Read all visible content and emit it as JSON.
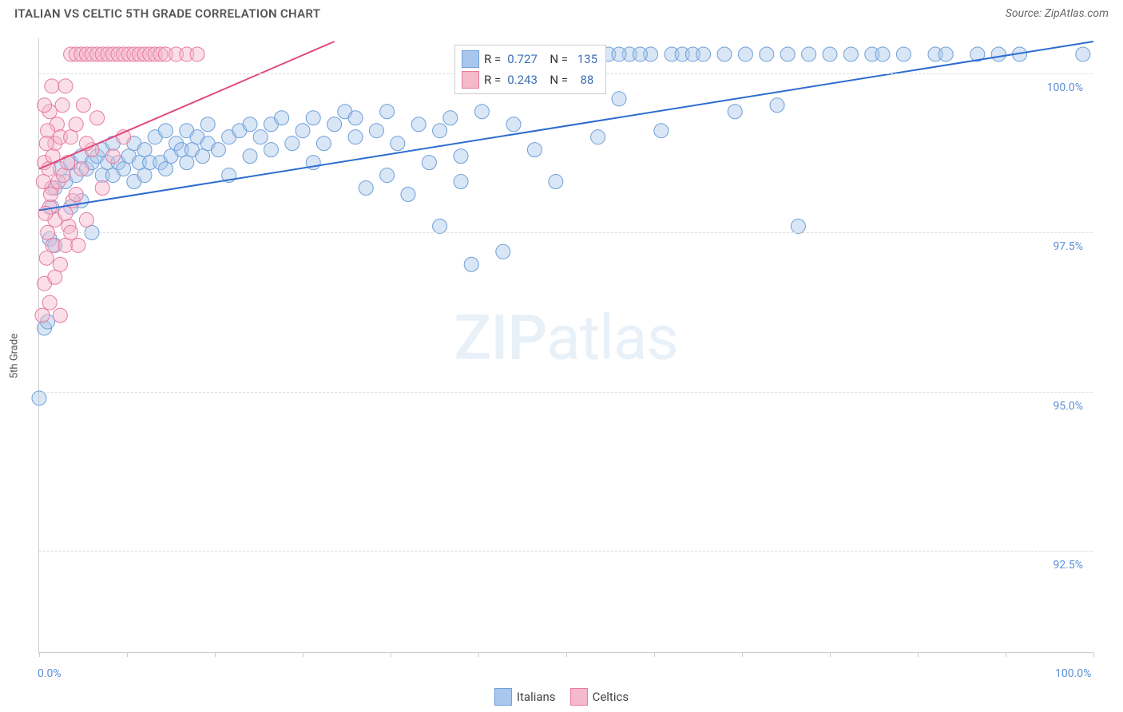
{
  "header": {
    "title": "ITALIAN VS CELTIC 5TH GRADE CORRELATION CHART",
    "source": "Source: ZipAtlas.com"
  },
  "chart": {
    "type": "scatter",
    "ylabel": "5th Grade",
    "watermark_bold": "ZIP",
    "watermark_light": "atlas",
    "xlim": [
      0,
      100
    ],
    "ylim": [
      90.9,
      100.55
    ],
    "x_ticks": [
      0,
      8.33,
      16.67,
      25,
      33.33,
      41.67,
      50,
      58.33,
      66.67,
      75,
      83.33,
      91.67,
      100
    ],
    "x_tick_labels": {
      "0": "0.0%",
      "100": "100.0%"
    },
    "y_ticks": [
      92.5,
      95.0,
      97.5,
      100.0
    ],
    "y_tick_labels": [
      "92.5%",
      "95.0%",
      "97.5%",
      "100.0%"
    ],
    "background_color": "#ffffff",
    "grid_color": "#dddddd",
    "marker_radius": 9,
    "marker_opacity": 0.45,
    "line_width": 2,
    "series": [
      {
        "name": "Italians",
        "color_fill": "#a9c7ec",
        "color_stroke": "#6f9fd8",
        "line_color": "#2d6cd0",
        "R": "0.727",
        "N": "135",
        "trend": {
          "x1": 0,
          "y1": 97.85,
          "x2": 100,
          "y2": 100.5
        },
        "points": [
          [
            0.0,
            94.9
          ],
          [
            0.5,
            96.0
          ],
          [
            0.8,
            96.1
          ],
          [
            1.0,
            97.4
          ],
          [
            1.2,
            97.9
          ],
          [
            1.5,
            98.2
          ],
          [
            1.5,
            97.3
          ],
          [
            2.0,
            98.5
          ],
          [
            2.5,
            98.3
          ],
          [
            3,
            98.6
          ],
          [
            3,
            97.9
          ],
          [
            3.5,
            98.4
          ],
          [
            4,
            98.7
          ],
          [
            4,
            98.0
          ],
          [
            4.5,
            98.5
          ],
          [
            5,
            98.6
          ],
          [
            5,
            97.5
          ],
          [
            5.5,
            98.7
          ],
          [
            6,
            98.4
          ],
          [
            6,
            98.8
          ],
          [
            6.5,
            98.6
          ],
          [
            7,
            98.4
          ],
          [
            7,
            98.9
          ],
          [
            7.5,
            98.6
          ],
          [
            8,
            98.5
          ],
          [
            8.5,
            98.7
          ],
          [
            9,
            98.9
          ],
          [
            9,
            98.3
          ],
          [
            9.5,
            98.6
          ],
          [
            10,
            98.8
          ],
          [
            10,
            98.4
          ],
          [
            10.5,
            98.6
          ],
          [
            11,
            99.0
          ],
          [
            11.5,
            98.6
          ],
          [
            12,
            98.5
          ],
          [
            12,
            99.1
          ],
          [
            12.5,
            98.7
          ],
          [
            13,
            98.9
          ],
          [
            13.5,
            98.8
          ],
          [
            14,
            99.1
          ],
          [
            14,
            98.6
          ],
          [
            14.5,
            98.8
          ],
          [
            15,
            99.0
          ],
          [
            15.5,
            98.7
          ],
          [
            16,
            98.9
          ],
          [
            16,
            99.2
          ],
          [
            17,
            98.8
          ],
          [
            18,
            99.0
          ],
          [
            18,
            98.4
          ],
          [
            19,
            99.1
          ],
          [
            20,
            99.2
          ],
          [
            20,
            98.7
          ],
          [
            21,
            99.0
          ],
          [
            22,
            99.2
          ],
          [
            22,
            98.8
          ],
          [
            23,
            99.3
          ],
          [
            24,
            98.9
          ],
          [
            25,
            99.1
          ],
          [
            26,
            98.6
          ],
          [
            26,
            99.3
          ],
          [
            27,
            98.9
          ],
          [
            28,
            99.2
          ],
          [
            29,
            99.4
          ],
          [
            30,
            99.0
          ],
          [
            30,
            99.3
          ],
          [
            31,
            98.2
          ],
          [
            32,
            99.1
          ],
          [
            33,
            98.4
          ],
          [
            33,
            99.4
          ],
          [
            34,
            98.9
          ],
          [
            35,
            98.1
          ],
          [
            36,
            99.2
          ],
          [
            37,
            98.6
          ],
          [
            38,
            99.1
          ],
          [
            38,
            97.6
          ],
          [
            39,
            99.3
          ],
          [
            40,
            98.7
          ],
          [
            40,
            98.3
          ],
          [
            41,
            97.0
          ],
          [
            42,
            99.4
          ],
          [
            44,
            97.2
          ],
          [
            45,
            99.2
          ],
          [
            47,
            98.8
          ],
          [
            49,
            98.3
          ],
          [
            50,
            100.3
          ],
          [
            52,
            100.3
          ],
          [
            53,
            99.0
          ],
          [
            54,
            100.3
          ],
          [
            55,
            99.6
          ],
          [
            56,
            100.3
          ],
          [
            58,
            100.3
          ],
          [
            59,
            99.1
          ],
          [
            60,
            100.3
          ],
          [
            61,
            100.3
          ],
          [
            62,
            100.3
          ],
          [
            63,
            100.3
          ],
          [
            65,
            100.3
          ],
          [
            66,
            99.4
          ],
          [
            67,
            100.3
          ],
          [
            69,
            100.3
          ],
          [
            70,
            99.5
          ],
          [
            71,
            100.3
          ],
          [
            72,
            97.6
          ],
          [
            73,
            100.3
          ],
          [
            75,
            100.3
          ],
          [
            77,
            100.3
          ],
          [
            79,
            100.3
          ],
          [
            80,
            100.3
          ],
          [
            82,
            100.3
          ],
          [
            85,
            100.3
          ],
          [
            86,
            100.3
          ],
          [
            89,
            100.3
          ],
          [
            91,
            100.3
          ],
          [
            93,
            100.3
          ],
          [
            99,
            100.3
          ],
          [
            51,
            100.3
          ],
          [
            53,
            100.3
          ],
          [
            55,
            100.3
          ],
          [
            57,
            100.3
          ]
        ]
      },
      {
        "name": "Celtics",
        "color_fill": "#f4b9cb",
        "color_stroke": "#e77aa0",
        "line_color": "#e14a7b",
        "R": "0.243",
        "N": "88",
        "trend": {
          "x1": 0,
          "y1": 98.5,
          "x2": 28,
          "y2": 100.5
        },
        "points": [
          [
            0.3,
            96.2
          ],
          [
            0.5,
            96.7
          ],
          [
            0.7,
            97.1
          ],
          [
            0.8,
            97.5
          ],
          [
            1.0,
            96.4
          ],
          [
            1.0,
            97.9
          ],
          [
            1.2,
            98.2
          ],
          [
            1.3,
            97.3
          ],
          [
            1.5,
            98.9
          ],
          [
            1.5,
            97.7
          ],
          [
            1.7,
            99.2
          ],
          [
            1.8,
            98.3
          ],
          [
            2.0,
            99.0
          ],
          [
            2.0,
            97.0
          ],
          [
            2.2,
            99.5
          ],
          [
            2.3,
            98.4
          ],
          [
            2.5,
            97.3
          ],
          [
            2.5,
            99.8
          ],
          [
            2.7,
            98.6
          ],
          [
            2.8,
            97.6
          ],
          [
            3.0,
            99.0
          ],
          [
            3.0,
            100.3
          ],
          [
            3.2,
            98.0
          ],
          [
            3.5,
            99.2
          ],
          [
            3.5,
            100.3
          ],
          [
            3.7,
            97.3
          ],
          [
            4.0,
            100.3
          ],
          [
            4.0,
            98.5
          ],
          [
            4.2,
            99.5
          ],
          [
            4.5,
            100.3
          ],
          [
            4.5,
            97.7
          ],
          [
            5.0,
            100.3
          ],
          [
            5.0,
            98.8
          ],
          [
            5.5,
            100.3
          ],
          [
            5.5,
            99.3
          ],
          [
            6.0,
            100.3
          ],
          [
            6.0,
            98.2
          ],
          [
            6.5,
            100.3
          ],
          [
            7.0,
            100.3
          ],
          [
            7.0,
            98.7
          ],
          [
            7.5,
            100.3
          ],
          [
            8.0,
            100.3
          ],
          [
            8.0,
            99.0
          ],
          [
            8.5,
            100.3
          ],
          [
            9.0,
            100.3
          ],
          [
            9.5,
            100.3
          ],
          [
            10.0,
            100.3
          ],
          [
            10.5,
            100.3
          ],
          [
            11.0,
            100.3
          ],
          [
            11.5,
            100.3
          ],
          [
            12.0,
            100.3
          ],
          [
            13.0,
            100.3
          ],
          [
            14.0,
            100.3
          ],
          [
            15.0,
            100.3
          ],
          [
            1.5,
            96.8
          ],
          [
            2.0,
            96.2
          ],
          [
            2.5,
            97.8
          ],
          [
            3.0,
            97.5
          ],
          [
            3.5,
            98.1
          ],
          [
            4.5,
            98.9
          ],
          [
            0.5,
            98.6
          ],
          [
            0.8,
            99.1
          ],
          [
            1.0,
            99.4
          ],
          [
            1.2,
            99.8
          ],
          [
            0.6,
            97.8
          ],
          [
            0.4,
            98.3
          ],
          [
            0.5,
            99.5
          ],
          [
            0.7,
            98.9
          ],
          [
            0.9,
            98.5
          ],
          [
            1.1,
            98.1
          ],
          [
            1.3,
            98.7
          ]
        ]
      }
    ],
    "legend": {
      "R_label": "R =",
      "N_label": "N ="
    },
    "bottom_legend": [
      "Italians",
      "Celtics"
    ]
  }
}
